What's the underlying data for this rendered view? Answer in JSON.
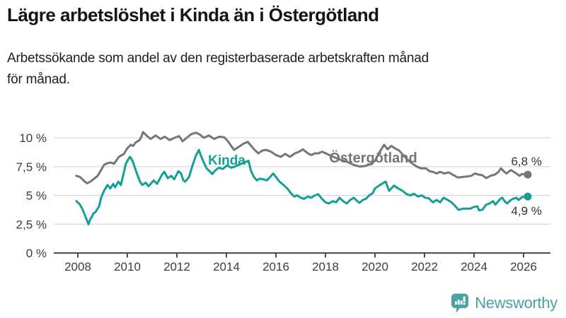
{
  "header": {
    "title": "Lägre arbetslöshet i Kinda än i Östergötland",
    "subtitle_line1": "Arbetssökande som andel av den registerbaserade arbetskraften månad",
    "subtitle_line2": "för månad."
  },
  "branding": {
    "logo_text": "Newsworthy",
    "logo_color": "#47a39f",
    "logo_icon": "bar-chart-speech-bubble-icon"
  },
  "colors": {
    "kinda": "#12a095",
    "ostergotland": "#76767a",
    "grid": "#d9d9d9",
    "axis": "#4c4c4c",
    "tick_text": "#3d3d3d",
    "end_label_text": "#333333",
    "background": "#ffffff"
  },
  "chart_data": {
    "type": "line",
    "title": "Lägre arbetslöshet i Kinda än i Östergötland",
    "subtitle": "Arbetssökande som andel av den registerbaserade arbetskraften månad för månad.",
    "unit": "%",
    "grid": "horizontal-only",
    "legend_position": "inline-labels-on-lines",
    "x_axis": {
      "range": [
        2007.9,
        2027.1
      ],
      "ticks": [
        2008,
        2010,
        2012,
        2014,
        2016,
        2018,
        2020,
        2022,
        2024,
        2026
      ],
      "tick_labels": [
        "2008",
        "2010",
        "2012",
        "2014",
        "2016",
        "2018",
        "2020",
        "2022",
        "2024",
        "2026"
      ]
    },
    "y_axis": {
      "range": [
        0,
        11
      ],
      "ticks": [
        {
          "value": 0,
          "label": "0 %"
        },
        {
          "value": 2.5,
          "label": "2,5 %"
        },
        {
          "value": 5,
          "label": "5 %"
        },
        {
          "value": 7.5,
          "label": "7,5 %"
        },
        {
          "value": 10,
          "label": "10 %"
        }
      ]
    },
    "series": [
      {
        "name": "Östergötland",
        "color": "#76767a",
        "end_label": "6,8 %",
        "end_value": 6.8,
        "end_label_side": "above",
        "label_pos": {
          "x": 2018.15,
          "y": 7.85
        },
        "label_font": 20,
        "points": [
          [
            2007.94,
            6.7
          ],
          [
            2008.09,
            6.6
          ],
          [
            2008.23,
            6.3
          ],
          [
            2008.37,
            6.05
          ],
          [
            2008.51,
            6.2
          ],
          [
            2008.63,
            6.4
          ],
          [
            2008.8,
            6.7
          ],
          [
            2008.94,
            7.2
          ],
          [
            2009.06,
            7.65
          ],
          [
            2009.2,
            7.8
          ],
          [
            2009.34,
            7.85
          ],
          [
            2009.46,
            7.75
          ],
          [
            2009.66,
            8.35
          ],
          [
            2009.86,
            8.6
          ],
          [
            2010.0,
            9.1
          ],
          [
            2010.14,
            9.4
          ],
          [
            2010.23,
            9.3
          ],
          [
            2010.34,
            9.6
          ],
          [
            2010.49,
            9.8
          ],
          [
            2010.57,
            10.1
          ],
          [
            2010.63,
            10.5
          ],
          [
            2010.77,
            10.2
          ],
          [
            2010.94,
            9.9
          ],
          [
            2011.14,
            10.2
          ],
          [
            2011.34,
            9.9
          ],
          [
            2011.51,
            10.1
          ],
          [
            2011.71,
            9.8
          ],
          [
            2011.91,
            10.0
          ],
          [
            2012.09,
            10.15
          ],
          [
            2012.23,
            9.7
          ],
          [
            2012.4,
            10.0
          ],
          [
            2012.57,
            10.3
          ],
          [
            2012.77,
            10.45
          ],
          [
            2012.91,
            10.3
          ],
          [
            2013.09,
            10.0
          ],
          [
            2013.29,
            10.2
          ],
          [
            2013.51,
            9.9
          ],
          [
            2013.71,
            10.1
          ],
          [
            2013.91,
            10.05
          ],
          [
            2014.06,
            9.7
          ],
          [
            2014.31,
            8.95
          ],
          [
            2014.49,
            9.2
          ],
          [
            2014.69,
            9.5
          ],
          [
            2014.86,
            9.65
          ],
          [
            2015.0,
            9.3
          ],
          [
            2015.14,
            8.95
          ],
          [
            2015.29,
            8.65
          ],
          [
            2015.46,
            8.9
          ],
          [
            2015.6,
            8.95
          ],
          [
            2015.8,
            8.8
          ],
          [
            2016.0,
            8.5
          ],
          [
            2016.2,
            8.35
          ],
          [
            2016.37,
            8.6
          ],
          [
            2016.57,
            8.35
          ],
          [
            2016.77,
            8.65
          ],
          [
            2016.94,
            8.8
          ],
          [
            2017.09,
            9.0
          ],
          [
            2017.29,
            8.65
          ],
          [
            2017.43,
            8.5
          ],
          [
            2017.57,
            8.65
          ],
          [
            2017.71,
            8.65
          ],
          [
            2017.86,
            8.8
          ],
          [
            2018.06,
            8.6
          ],
          [
            2018.31,
            8.35
          ],
          [
            2018.6,
            8.1
          ],
          [
            2018.89,
            7.9
          ],
          [
            2019.14,
            7.65
          ],
          [
            2019.4,
            7.5
          ],
          [
            2019.6,
            7.55
          ],
          [
            2019.8,
            7.7
          ],
          [
            2020.0,
            8.0
          ],
          [
            2020.17,
            8.7
          ],
          [
            2020.37,
            9.4
          ],
          [
            2020.51,
            9.0
          ],
          [
            2020.66,
            9.3
          ],
          [
            2020.8,
            9.1
          ],
          [
            2020.97,
            8.9
          ],
          [
            2021.14,
            8.5
          ],
          [
            2021.31,
            8.1
          ],
          [
            2021.49,
            7.8
          ],
          [
            2021.69,
            7.5
          ],
          [
            2021.86,
            7.35
          ],
          [
            2022.06,
            7.35
          ],
          [
            2022.2,
            7.1
          ],
          [
            2022.34,
            7.05
          ],
          [
            2022.49,
            6.9
          ],
          [
            2022.63,
            7.05
          ],
          [
            2022.8,
            6.9
          ],
          [
            2022.97,
            7.0
          ],
          [
            2023.14,
            6.8
          ],
          [
            2023.34,
            6.55
          ],
          [
            2023.54,
            6.6
          ],
          [
            2023.74,
            6.65
          ],
          [
            2023.89,
            6.7
          ],
          [
            2024.03,
            6.9
          ],
          [
            2024.2,
            6.8
          ],
          [
            2024.34,
            6.75
          ],
          [
            2024.49,
            6.5
          ],
          [
            2024.66,
            6.7
          ],
          [
            2024.83,
            6.8
          ],
          [
            2024.97,
            7.0
          ],
          [
            2025.09,
            7.35
          ],
          [
            2025.2,
            7.1
          ],
          [
            2025.31,
            6.9
          ],
          [
            2025.49,
            7.2
          ],
          [
            2025.6,
            7.05
          ],
          [
            2025.71,
            6.9
          ],
          [
            2025.83,
            6.7
          ],
          [
            2025.94,
            6.85
          ],
          [
            2026.17,
            6.8
          ]
        ]
      },
      {
        "name": "Kinda",
        "color": "#12a095",
        "end_label": "4,9 %",
        "end_value": 4.9,
        "end_label_side": "below",
        "label_pos": {
          "x": 2013.26,
          "y": 7.67
        },
        "label_font": 19,
        "points": [
          [
            2007.94,
            4.5
          ],
          [
            2008.09,
            4.2
          ],
          [
            2008.2,
            3.75
          ],
          [
            2008.29,
            3.25
          ],
          [
            2008.43,
            2.5
          ],
          [
            2008.51,
            2.95
          ],
          [
            2008.57,
            3.15
          ],
          [
            2008.63,
            3.45
          ],
          [
            2008.71,
            3.55
          ],
          [
            2008.86,
            4.05
          ],
          [
            2008.94,
            4.8
          ],
          [
            2009.06,
            5.4
          ],
          [
            2009.2,
            5.9
          ],
          [
            2009.31,
            5.6
          ],
          [
            2009.43,
            6.0
          ],
          [
            2009.51,
            5.7
          ],
          [
            2009.63,
            6.2
          ],
          [
            2009.74,
            5.9
          ],
          [
            2009.86,
            7.0
          ],
          [
            2009.94,
            7.75
          ],
          [
            2010.03,
            8.1
          ],
          [
            2010.11,
            8.35
          ],
          [
            2010.2,
            8.05
          ],
          [
            2010.37,
            7.0
          ],
          [
            2010.51,
            6.2
          ],
          [
            2010.6,
            5.9
          ],
          [
            2010.74,
            6.1
          ],
          [
            2010.86,
            5.8
          ],
          [
            2011.06,
            6.3
          ],
          [
            2011.2,
            6.0
          ],
          [
            2011.4,
            6.8
          ],
          [
            2011.49,
            7.05
          ],
          [
            2011.63,
            6.5
          ],
          [
            2011.77,
            6.7
          ],
          [
            2011.89,
            6.4
          ],
          [
            2012.06,
            7.1
          ],
          [
            2012.17,
            6.9
          ],
          [
            2012.26,
            6.3
          ],
          [
            2012.34,
            6.2
          ],
          [
            2012.49,
            6.6
          ],
          [
            2012.63,
            7.6
          ],
          [
            2012.77,
            8.45
          ],
          [
            2012.89,
            8.95
          ],
          [
            2012.97,
            8.45
          ],
          [
            2013.09,
            7.85
          ],
          [
            2013.2,
            7.35
          ],
          [
            2013.34,
            7.05
          ],
          [
            2013.43,
            6.85
          ],
          [
            2013.54,
            7.15
          ],
          [
            2013.69,
            7.4
          ],
          [
            2013.86,
            7.3
          ],
          [
            2014.03,
            7.6
          ],
          [
            2014.2,
            7.4
          ],
          [
            2014.4,
            7.55
          ],
          [
            2014.6,
            7.75
          ],
          [
            2014.77,
            7.9
          ],
          [
            2014.89,
            8.0
          ],
          [
            2015.0,
            7.1
          ],
          [
            2015.11,
            6.6
          ],
          [
            2015.23,
            6.3
          ],
          [
            2015.34,
            6.45
          ],
          [
            2015.49,
            6.4
          ],
          [
            2015.63,
            6.3
          ],
          [
            2015.77,
            6.6
          ],
          [
            2015.89,
            6.9
          ],
          [
            2016.0,
            6.6
          ],
          [
            2016.14,
            6.2
          ],
          [
            2016.31,
            5.9
          ],
          [
            2016.46,
            5.6
          ],
          [
            2016.6,
            5.2
          ],
          [
            2016.74,
            4.9
          ],
          [
            2016.86,
            5.0
          ],
          [
            2017.0,
            4.8
          ],
          [
            2017.14,
            4.7
          ],
          [
            2017.29,
            4.9
          ],
          [
            2017.43,
            4.8
          ],
          [
            2017.57,
            5.0
          ],
          [
            2017.71,
            5.1
          ],
          [
            2017.86,
            4.7
          ],
          [
            2018.0,
            4.4
          ],
          [
            2018.14,
            4.3
          ],
          [
            2018.29,
            4.5
          ],
          [
            2018.43,
            4.4
          ],
          [
            2018.57,
            4.8
          ],
          [
            2018.71,
            4.5
          ],
          [
            2018.86,
            4.3
          ],
          [
            2019.0,
            4.6
          ],
          [
            2019.14,
            4.8
          ],
          [
            2019.29,
            4.5
          ],
          [
            2019.37,
            4.35
          ],
          [
            2019.51,
            4.6
          ],
          [
            2019.63,
            4.7
          ],
          [
            2019.77,
            5.0
          ],
          [
            2019.91,
            5.2
          ],
          [
            2020.0,
            5.6
          ],
          [
            2020.2,
            5.9
          ],
          [
            2020.43,
            6.2
          ],
          [
            2020.57,
            5.4
          ],
          [
            2020.77,
            5.85
          ],
          [
            2020.94,
            5.6
          ],
          [
            2021.11,
            5.4
          ],
          [
            2021.29,
            5.1
          ],
          [
            2021.43,
            5.0
          ],
          [
            2021.57,
            5.15
          ],
          [
            2021.74,
            4.9
          ],
          [
            2021.89,
            5.0
          ],
          [
            2022.03,
            4.8
          ],
          [
            2022.17,
            4.75
          ],
          [
            2022.34,
            4.4
          ],
          [
            2022.49,
            4.6
          ],
          [
            2022.63,
            4.4
          ],
          [
            2022.77,
            4.8
          ],
          [
            2022.94,
            4.6
          ],
          [
            2023.09,
            4.4
          ],
          [
            2023.23,
            4.1
          ],
          [
            2023.37,
            3.75
          ],
          [
            2023.57,
            3.85
          ],
          [
            2023.71,
            3.85
          ],
          [
            2023.86,
            3.85
          ],
          [
            2024.0,
            4.0
          ],
          [
            2024.14,
            4.05
          ],
          [
            2024.2,
            3.7
          ],
          [
            2024.34,
            3.75
          ],
          [
            2024.49,
            4.2
          ],
          [
            2024.63,
            4.3
          ],
          [
            2024.77,
            4.5
          ],
          [
            2024.86,
            4.2
          ],
          [
            2024.94,
            4.4
          ],
          [
            2025.06,
            4.7
          ],
          [
            2025.14,
            4.8
          ],
          [
            2025.23,
            4.5
          ],
          [
            2025.34,
            4.3
          ],
          [
            2025.49,
            4.6
          ],
          [
            2025.57,
            4.7
          ],
          [
            2025.71,
            4.8
          ],
          [
            2025.8,
            4.6
          ],
          [
            2025.94,
            4.85
          ],
          [
            2026.17,
            4.9
          ]
        ]
      }
    ]
  }
}
